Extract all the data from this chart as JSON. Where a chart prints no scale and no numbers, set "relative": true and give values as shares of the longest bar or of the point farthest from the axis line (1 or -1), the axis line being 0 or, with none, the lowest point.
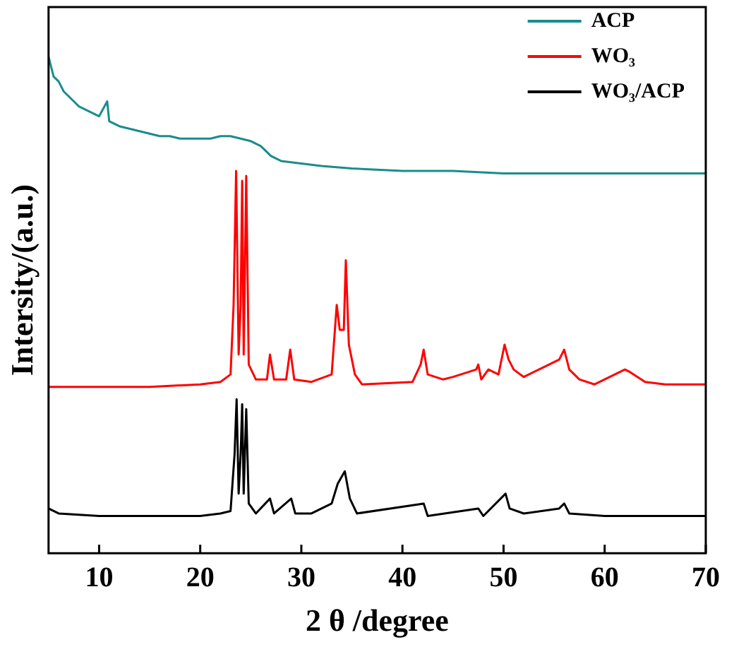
{
  "chart_data": {
    "type": "line",
    "relative": true,
    "xlabel": "2 θ /degree",
    "ylabel": "Intersity/(a.u.)",
    "xlim": [
      5,
      70
    ],
    "xticks": [
      10,
      20,
      30,
      40,
      50,
      60,
      70
    ],
    "legend": "top right",
    "marker": "none",
    "line_style": "solid",
    "grid": false,
    "series": [
      {
        "name": "ACP",
        "color": "#1a8c8c",
        "x": [
          5,
          5.5,
          6,
          6.5,
          7,
          7.5,
          8,
          9,
          10,
          10.8,
          11,
          12,
          13,
          14,
          15,
          16,
          17,
          18,
          19,
          20,
          21,
          22,
          23,
          24,
          25,
          26,
          27,
          28,
          30,
          32,
          35,
          40,
          45,
          50,
          55,
          60,
          65,
          70
        ],
        "values": [
          1.0,
          0.96,
          0.95,
          0.93,
          0.92,
          0.91,
          0.9,
          0.89,
          0.88,
          0.91,
          0.87,
          0.86,
          0.855,
          0.85,
          0.845,
          0.84,
          0.84,
          0.835,
          0.835,
          0.835,
          0.835,
          0.84,
          0.84,
          0.835,
          0.83,
          0.82,
          0.8,
          0.79,
          0.785,
          0.78,
          0.775,
          0.77,
          0.77,
          0.765,
          0.765,
          0.765,
          0.765,
          0.765
        ]
      },
      {
        "name": "WO₃",
        "color": "#ff0000",
        "x": [
          5,
          10,
          15,
          20,
          22,
          23,
          23.3,
          23.55,
          23.8,
          24.0,
          24.15,
          24.3,
          24.55,
          24.8,
          25.5,
          26.6,
          26.9,
          27.3,
          28.5,
          28.9,
          29.3,
          31,
          33,
          33.5,
          33.8,
          34.2,
          34.4,
          34.7,
          35.3,
          36,
          41,
          41.8,
          42.1,
          42.5,
          44,
          45,
          47.3,
          47.5,
          47.8,
          48.5,
          49.5,
          50.1,
          50.5,
          51,
          52,
          53.5,
          54.5,
          55.5,
          56,
          56.5,
          57.5,
          59,
          61,
          62,
          62.5,
          64,
          66,
          70
        ],
        "values": [
          0.335,
          0.335,
          0.335,
          0.34,
          0.345,
          0.36,
          0.5,
          0.77,
          0.4,
          0.5,
          0.75,
          0.4,
          0.76,
          0.38,
          0.35,
          0.35,
          0.4,
          0.35,
          0.35,
          0.41,
          0.35,
          0.345,
          0.36,
          0.5,
          0.45,
          0.45,
          0.59,
          0.42,
          0.36,
          0.34,
          0.345,
          0.38,
          0.41,
          0.36,
          0.35,
          0.355,
          0.37,
          0.38,
          0.35,
          0.37,
          0.36,
          0.42,
          0.39,
          0.37,
          0.355,
          0.37,
          0.38,
          0.39,
          0.41,
          0.37,
          0.35,
          0.34,
          0.36,
          0.37,
          0.365,
          0.345,
          0.34,
          0.34
        ]
      },
      {
        "name": "WO₃/ACP",
        "color": "#000000",
        "x": [
          5,
          6,
          10,
          15,
          20,
          22,
          23,
          23.4,
          23.6,
          23.8,
          24.0,
          24.15,
          24.3,
          24.55,
          24.8,
          25.5,
          26.9,
          27.3,
          29,
          29.4,
          31,
          33,
          33.6,
          34.3,
          34.8,
          35.5,
          42.1,
          42.5,
          47.5,
          48,
          50.2,
          50.6,
          52,
          55.5,
          56,
          56.5,
          60,
          65,
          70
        ],
        "values": [
          0.09,
          0.08,
          0.075,
          0.075,
          0.075,
          0.08,
          0.085,
          0.2,
          0.31,
          0.12,
          0.2,
          0.3,
          0.12,
          0.29,
          0.1,
          0.08,
          0.11,
          0.08,
          0.11,
          0.08,
          0.08,
          0.1,
          0.14,
          0.165,
          0.11,
          0.08,
          0.1,
          0.075,
          0.09,
          0.075,
          0.12,
          0.09,
          0.08,
          0.09,
          0.1,
          0.08,
          0.075,
          0.075,
          0.075
        ]
      }
    ]
  }
}
